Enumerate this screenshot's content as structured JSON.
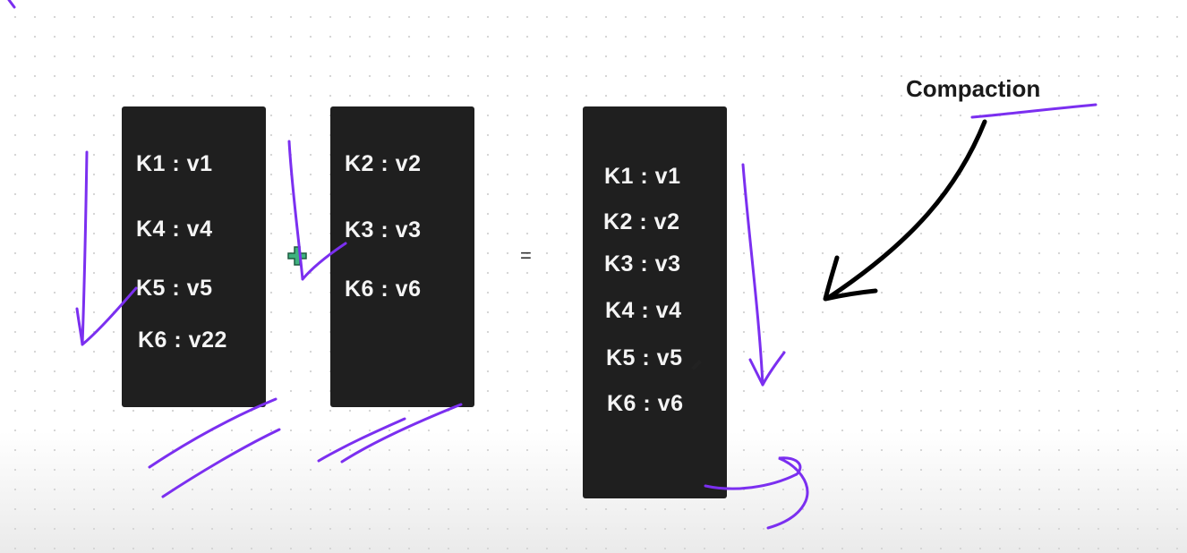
{
  "sstable_a": {
    "entries": [
      "K1 : v1",
      "K4 : v4",
      "K5 : v5",
      "K6 : v22"
    ]
  },
  "operator_plus": "+",
  "sstable_b": {
    "entries": [
      "K2 : v2",
      "K3 : v3",
      "K6 : v6"
    ]
  },
  "operator_equals": "=",
  "merged": {
    "entries": [
      "K1 : v1",
      "K2 : v2",
      "K3 : v3",
      "K4 : v4",
      "K5 : v5",
      "K6 : v6"
    ]
  },
  "annotation": {
    "label": "Compaction"
  },
  "colors": {
    "block_background": "#1f1f1f",
    "entry_text": "#f4f4f4",
    "ink_purple": "#7b2ff0",
    "arrow_black": "#000000",
    "plus_cursor_green": "#3fb27f"
  }
}
